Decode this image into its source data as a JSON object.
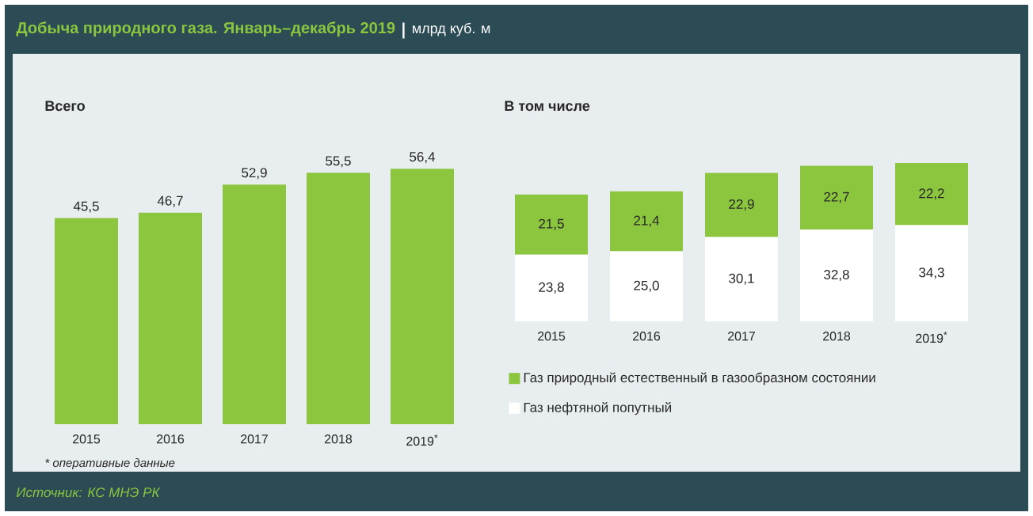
{
  "chart_data": [
    {
      "type": "other",
      "title": "Добыча природного газа. Январь–декабрь 2019",
      "subtitle": "млрд куб. м",
      "annotations": [
        "* оперативные данные",
        "Источник: КС МНЭ РК"
      ]
    },
    {
      "type": "bar",
      "title": "Всего",
      "categories": [
        "2015",
        "2016",
        "2017",
        "2018",
        "2019$^{*}$"
      ],
      "values": [
        45.5,
        46.7,
        52.9,
        55.5,
        56.4
      ],
      "color": "#8cc63f",
      "value_labels": [
        "45,5",
        "46,7",
        "52,9",
        "55,5",
        "56,4"
      ]
    },
    {
      "type": "bar",
      "title": "В том числе",
      "stacked": true,
      "legend": "bottom left",
      "categories": [
        "2015",
        "2016",
        "2017",
        "2018",
        "2019$^{*}$"
      ],
      "series": [
        {
          "name": "Газ нефтяной попутный",
          "color": "#ffffff",
          "values": [
            23.8,
            25.0,
            30.1,
            32.8,
            34.3
          ],
          "value_labels": [
            "23,8",
            "25,0",
            "30,1",
            "32,8",
            "34,3"
          ]
        },
        {
          "name": "Газ природный естественный в газообразном состоянии",
          "color": "#8cc63f",
          "values": [
            21.5,
            21.4,
            22.9,
            22.7,
            22.2
          ],
          "value_labels": [
            "21,5",
            "21,4",
            "22,9",
            "22,7",
            "22,2"
          ]
        }
      ]
    }
  ]
}
